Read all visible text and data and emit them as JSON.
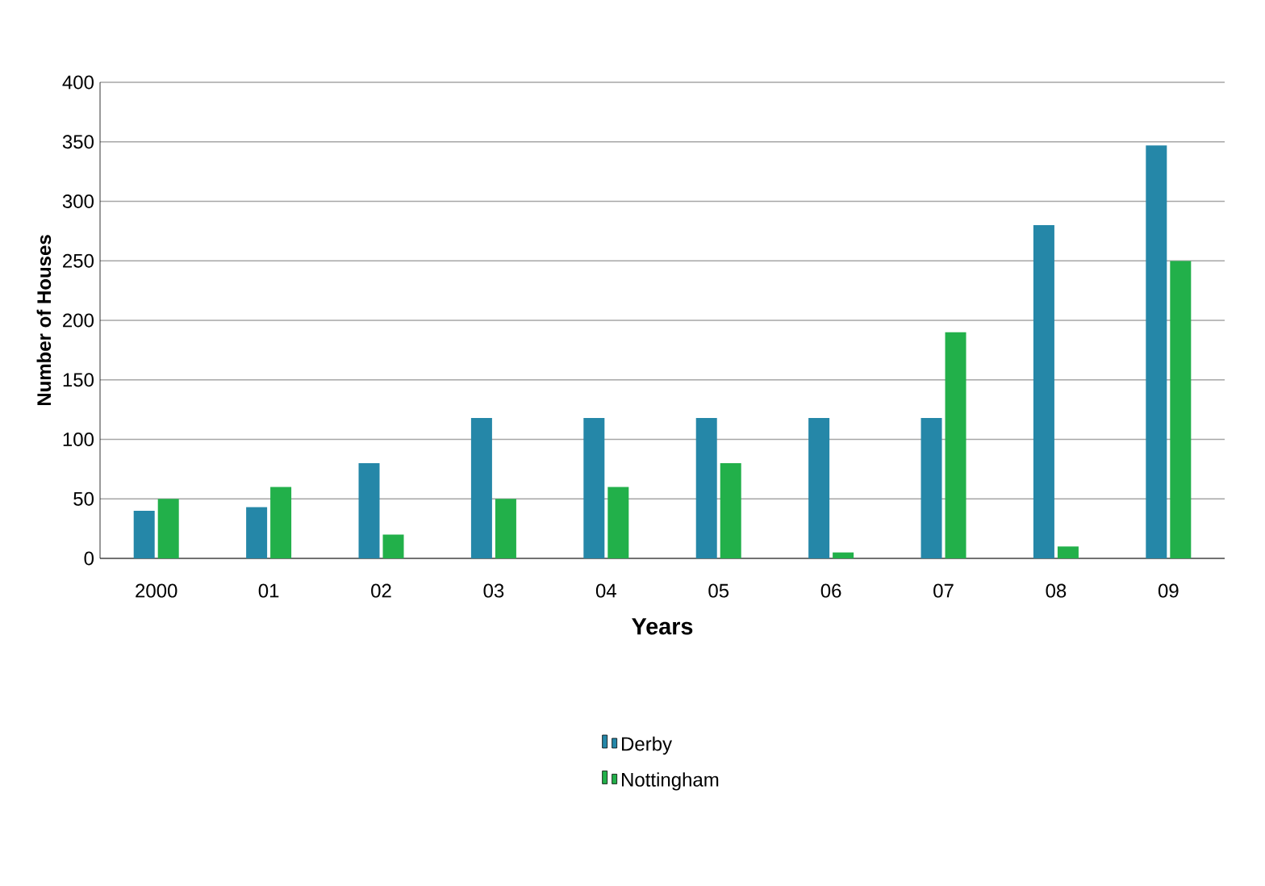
{
  "chart_data": {
    "type": "bar",
    "xlabel": "Years",
    "ylabel": "Number of Houses",
    "categories": [
      "2000",
      "01",
      "02",
      "03",
      "04",
      "05",
      "06",
      "07",
      "08",
      "09"
    ],
    "series": [
      {
        "name": "Derby",
        "color": "#2587a8",
        "values": [
          40,
          43,
          80,
          118,
          118,
          118,
          118,
          118,
          280,
          347
        ]
      },
      {
        "name": "Nottingham",
        "color": "#22b04a",
        "values": [
          50,
          60,
          20,
          50,
          60,
          80,
          5,
          190,
          10,
          250
        ]
      }
    ],
    "ylim": [
      0,
      400
    ],
    "yticks": [
      0,
      50,
      100,
      150,
      200,
      250,
      300,
      350,
      400
    ],
    "grid": "y",
    "legend": "bottom"
  }
}
